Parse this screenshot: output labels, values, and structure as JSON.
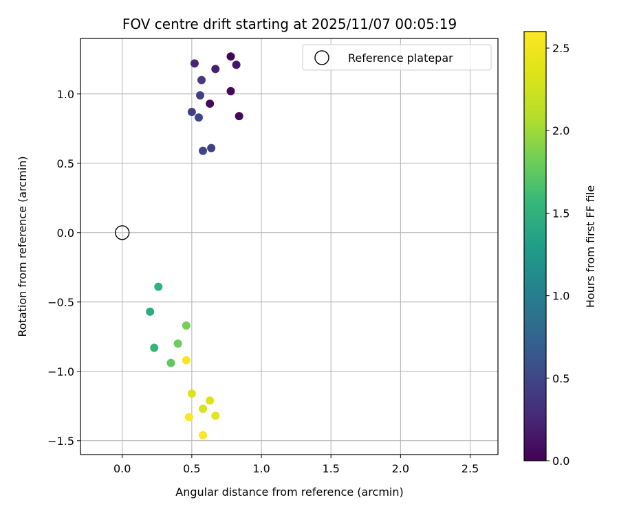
{
  "chart_data": {
    "type": "scatter",
    "title": "FOV centre drift starting at 2025/11/07 00:05:19",
    "xlabel": "Angular distance from reference (arcmin)",
    "ylabel": "Rotation from reference (arcmin)",
    "xlim": [
      -0.3,
      2.7
    ],
    "ylim": [
      -1.6,
      1.4
    ],
    "xticks": [
      0.0,
      0.5,
      1.0,
      1.5,
      2.0,
      2.5
    ],
    "xtick_labels": [
      "0.0",
      "0.5",
      "1.0",
      "1.5",
      "2.0",
      "2.5"
    ],
    "yticks": [
      -1.5,
      -1.0,
      -0.5,
      0.0,
      0.5,
      1.0
    ],
    "ytick_labels": [
      "−1.5",
      "−1.0",
      "−0.5",
      "0.0",
      "0.5",
      "1.0"
    ],
    "grid": true,
    "colormap": "viridis",
    "colorbar": {
      "label": "Hours from first FF file",
      "range": [
        0.0,
        2.6
      ],
      "ticks": [
        0.0,
        0.5,
        1.0,
        1.5,
        2.0,
        2.5
      ],
      "tick_labels": [
        "0.0",
        "0.5",
        "1.0",
        "1.5",
        "2.0",
        "2.5"
      ]
    },
    "legend": {
      "placement": "top-right",
      "entries": [
        {
          "label": "Reference platepar",
          "marker": "open-circle"
        }
      ]
    },
    "reference_point": {
      "x": 0.0,
      "y": 0.0
    },
    "points": [
      {
        "x": 0.78,
        "y": 1.27,
        "t": 0.02
      },
      {
        "x": 0.52,
        "y": 1.22,
        "t": 0.25
      },
      {
        "x": 0.67,
        "y": 1.18,
        "t": 0.2
      },
      {
        "x": 0.82,
        "y": 1.21,
        "t": 0.15
      },
      {
        "x": 0.57,
        "y": 1.1,
        "t": 0.4
      },
      {
        "x": 0.56,
        "y": 0.99,
        "t": 0.45
      },
      {
        "x": 0.78,
        "y": 1.02,
        "t": 0.05
      },
      {
        "x": 0.63,
        "y": 0.93,
        "t": 0.05
      },
      {
        "x": 0.5,
        "y": 0.87,
        "t": 0.45
      },
      {
        "x": 0.55,
        "y": 0.83,
        "t": 0.5
      },
      {
        "x": 0.84,
        "y": 0.84,
        "t": 0.05
      },
      {
        "x": 0.58,
        "y": 0.59,
        "t": 0.5
      },
      {
        "x": 0.64,
        "y": 0.61,
        "t": 0.45
      },
      {
        "x": 0.26,
        "y": -0.39,
        "t": 1.5
      },
      {
        "x": 0.2,
        "y": -0.57,
        "t": 1.45
      },
      {
        "x": 0.46,
        "y": -0.67,
        "t": 1.85
      },
      {
        "x": 0.23,
        "y": -0.83,
        "t": 1.55
      },
      {
        "x": 0.4,
        "y": -0.8,
        "t": 1.8
      },
      {
        "x": 0.35,
        "y": -0.94,
        "t": 1.75
      },
      {
        "x": 0.46,
        "y": -0.92,
        "t": 2.55
      },
      {
        "x": 0.5,
        "y": -1.16,
        "t": 2.35
      },
      {
        "x": 0.63,
        "y": -1.21,
        "t": 2.35
      },
      {
        "x": 0.58,
        "y": -1.27,
        "t": 2.3
      },
      {
        "x": 0.67,
        "y": -1.32,
        "t": 2.4
      },
      {
        "x": 0.48,
        "y": -1.33,
        "t": 2.58
      },
      {
        "x": 0.58,
        "y": -1.46,
        "t": 2.58
      }
    ]
  }
}
